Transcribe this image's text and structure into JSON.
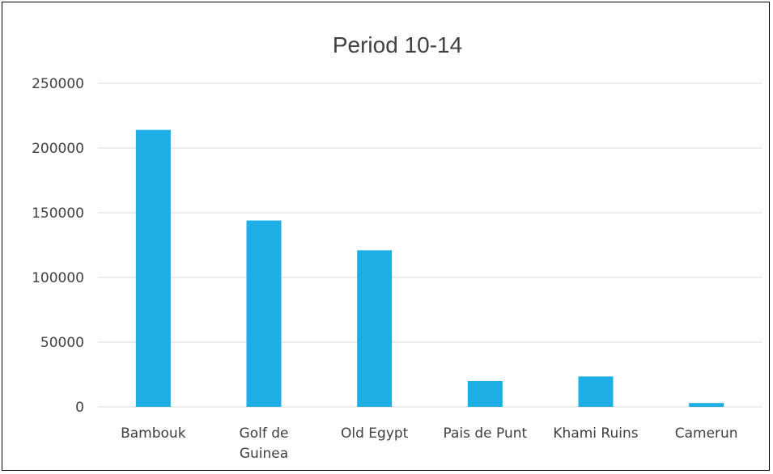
{
  "chart_data": {
    "type": "bar",
    "title": "Period 10-14",
    "xlabel": "",
    "ylabel": "",
    "categories": [
      [
        "Bambouk"
      ],
      [
        "Golf de",
        "Guinea"
      ],
      [
        "Old Egypt"
      ],
      [
        "Pais de Punt"
      ],
      [
        "Khami Ruins"
      ],
      [
        "Camerun"
      ]
    ],
    "values": [
      214000,
      144000,
      121000,
      20000,
      23500,
      3000
    ],
    "ylim": [
      0,
      250000
    ],
    "yticks": [
      0,
      50000,
      100000,
      150000,
      200000,
      250000
    ],
    "grid": true,
    "legend": "none",
    "bar_color": "#1eaee6"
  }
}
